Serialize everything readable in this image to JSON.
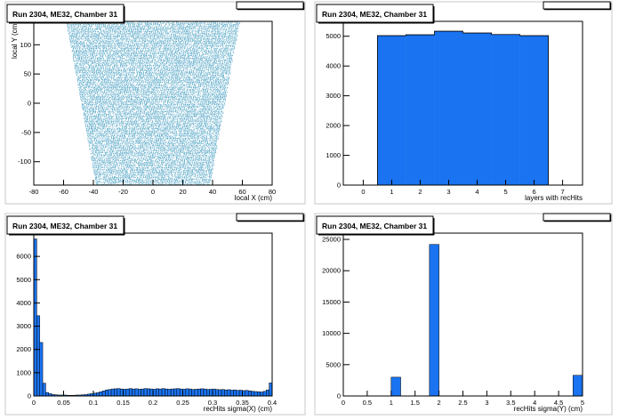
{
  "colors": {
    "fill": "#1a73f0",
    "scatter": "#5aa9c8",
    "frame": "#000000",
    "pad_border": "#c8c8c8"
  },
  "chart_data": [
    {
      "type": "scatter",
      "title": "Run 2304, ME32, Chamber 31",
      "xlabel": "local X (cm)",
      "ylabel": "local Y (cm)",
      "xlim": [
        -80,
        80
      ],
      "ylim": [
        -140,
        140
      ],
      "xticks": [
        "-80",
        "-60",
        "-40",
        "-20",
        "0",
        "20",
        "40",
        "60",
        "80"
      ],
      "yticks": [
        "-100",
        "-50",
        "0",
        "50",
        "100"
      ],
      "region": {
        "top_y": 140,
        "top_half_width": 58,
        "bottom_y": -140,
        "bottom_half_width": 38
      }
    },
    {
      "type": "bar",
      "title": "Run 2304, ME32, Chamber 31",
      "xlabel": "layers with recHits",
      "ylabel": "",
      "xlim": [
        -0.7,
        7.7
      ],
      "ylim": [
        0,
        5500
      ],
      "xticks": [
        "0",
        "1",
        "2",
        "3",
        "4",
        "5",
        "6",
        "7"
      ],
      "yticks": [
        "0",
        "1000",
        "2000",
        "3000",
        "4000",
        "5000"
      ],
      "categories": [
        "1",
        "2",
        "3",
        "4",
        "5",
        "6"
      ],
      "values": [
        5020,
        5050,
        5170,
        5110,
        5060,
        5020
      ]
    },
    {
      "type": "bar",
      "title": "Run 2304, ME32, Chamber 31",
      "xlabel": "recHits sigma(X) (cm)",
      "ylabel": "",
      "xlim": [
        0,
        0.4
      ],
      "ylim": [
        0,
        7000
      ],
      "xticks": [
        "0",
        "0.05",
        "0.1",
        "0.15",
        "0.2",
        "0.25",
        "0.3",
        "0.35",
        "0.4"
      ],
      "yticks": [
        "0",
        "1000",
        "2000",
        "3000",
        "4000",
        "5000",
        "6000",
        "7000"
      ],
      "bin_width": 0.005,
      "x": [
        0.0025,
        0.0075,
        0.0125,
        0.0175,
        0.0225,
        0.0275,
        0.0325,
        0.0375,
        0.0425,
        0.0475,
        0.0525,
        0.0575,
        0.0625,
        0.0675,
        0.0725,
        0.0775,
        0.0825,
        0.0875,
        0.0925,
        0.0975,
        0.1025,
        0.1075,
        0.1125,
        0.1175,
        0.1225,
        0.1275,
        0.1325,
        0.1375,
        0.1425,
        0.1475,
        0.1525,
        0.1575,
        0.1625,
        0.1675,
        0.1725,
        0.1775,
        0.1825,
        0.1875,
        0.1925,
        0.1975,
        0.2025,
        0.2075,
        0.2125,
        0.2175,
        0.2225,
        0.2275,
        0.2325,
        0.2375,
        0.2425,
        0.2475,
        0.2525,
        0.2575,
        0.2625,
        0.2675,
        0.2725,
        0.2775,
        0.2825,
        0.2875,
        0.2925,
        0.2975,
        0.3025,
        0.3075,
        0.3125,
        0.3175,
        0.3225,
        0.3275,
        0.3325,
        0.3375,
        0.3425,
        0.3475,
        0.3525,
        0.3575,
        0.3625,
        0.3675,
        0.3725,
        0.3775,
        0.3825,
        0.3875,
        0.3925,
        0.3975
      ],
      "values": [
        6750,
        3450,
        2300,
        550,
        150,
        100,
        60,
        50,
        40,
        40,
        40,
        30,
        30,
        30,
        40,
        40,
        50,
        60,
        80,
        100,
        120,
        140,
        180,
        220,
        260,
        280,
        300,
        310,
        320,
        300,
        290,
        300,
        320,
        300,
        310,
        290,
        300,
        320,
        310,
        300,
        290,
        310,
        300,
        320,
        300,
        290,
        300,
        310,
        320,
        300,
        290,
        310,
        300,
        280,
        290,
        300,
        310,
        300,
        280,
        290,
        300,
        280,
        270,
        280,
        260,
        270,
        250,
        260,
        240,
        250,
        230,
        240,
        220,
        200,
        190,
        180,
        170,
        200,
        260,
        560
      ]
    },
    {
      "type": "bar",
      "title": "Run 2304, ME32, Chamber 31",
      "xlabel": "recHits sigma(Y) (cm)",
      "ylabel": "",
      "xlim": [
        0,
        5
      ],
      "ylim": [
        0,
        26000
      ],
      "xticks": [
        "0",
        "0.5",
        "1",
        "1.5",
        "2",
        "2.5",
        "3",
        "3.5",
        "4",
        "4.5",
        "5"
      ],
      "yticks": [
        "0",
        "5000",
        "10000",
        "15000",
        "20000",
        "25000"
      ],
      "bin_width": 0.2,
      "x": [
        1.1,
        1.9,
        4.9
      ],
      "values": [
        3000,
        24200,
        3300
      ]
    }
  ]
}
